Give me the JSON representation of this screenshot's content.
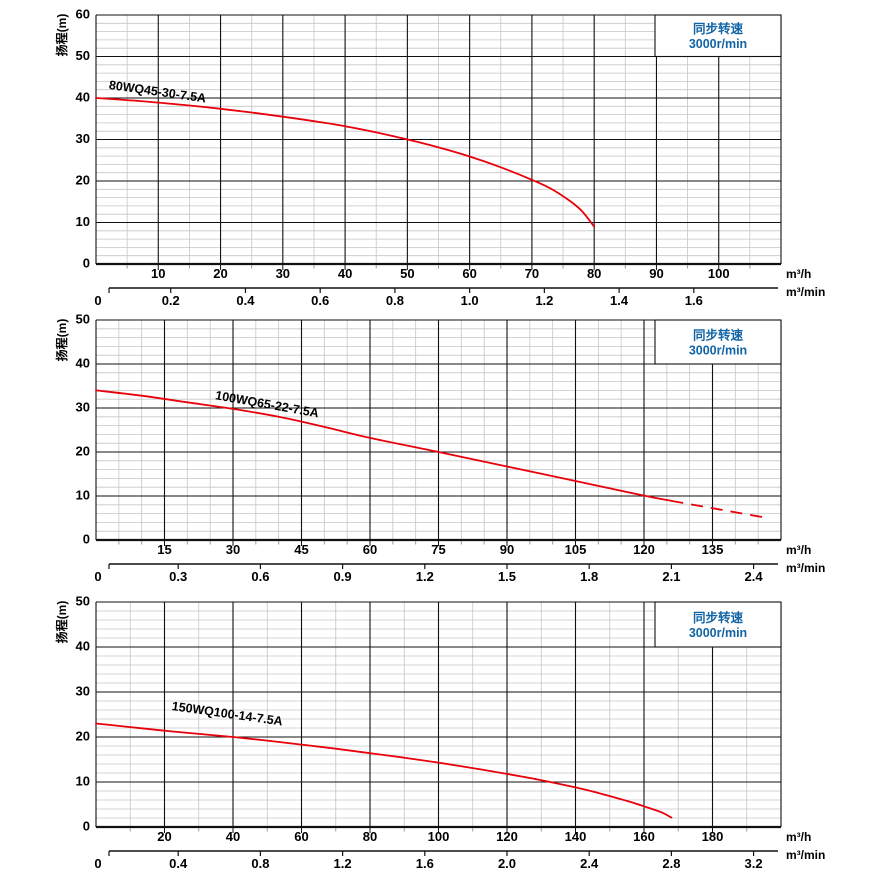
{
  "page": {
    "background": "#ffffff"
  },
  "colors": {
    "curve_red": "#e8000a",
    "accent_blue": "#1264a5",
    "grid_major": "#111111",
    "grid_minor": "#c6c6c6",
    "text_black": "#000000",
    "box_bg": "#ffffff"
  },
  "chart_data": [
    {
      "type": "line",
      "model_label": "80WQ45-30-7.5A",
      "ylabel": "扬程(m)",
      "unit_primary": "m³/h",
      "unit_secondary": "m³/min",
      "annotation": {
        "line1": "同步转速",
        "line2": "3000r/min"
      },
      "ylim": [
        0,
        60
      ],
      "xlim": [
        0,
        110
      ],
      "y_ticks": [
        0,
        10,
        20,
        30,
        40,
        50,
        60
      ],
      "y_minor_step": 2,
      "x_major_step": 10,
      "x_minor_step": 5,
      "x_ticks_m3h": [
        10,
        20,
        30,
        40,
        50,
        60,
        70,
        80,
        90,
        100
      ],
      "x_ticks_m3min": [
        "0",
        "0.2",
        "0.4",
        "0.6",
        "0.8",
        "1.0",
        "1.2",
        "1.4",
        "1.6"
      ],
      "curve": {
        "points_m3h_head_m": [
          [
            0,
            40
          ],
          [
            5,
            39.5
          ],
          [
            10,
            38.9
          ],
          [
            15,
            38.2
          ],
          [
            20,
            37.4
          ],
          [
            25,
            36.5
          ],
          [
            30,
            35.5
          ],
          [
            35,
            34.4
          ],
          [
            40,
            33.2
          ],
          [
            45,
            31.7
          ],
          [
            50,
            30
          ],
          [
            55,
            28.1
          ],
          [
            60,
            25.9
          ],
          [
            65,
            23.3
          ],
          [
            70,
            20.3
          ],
          [
            73,
            18.2
          ],
          [
            76,
            15.3
          ],
          [
            78,
            12.8
          ],
          [
            80,
            9
          ]
        ],
        "dash_from": null
      },
      "label_anchor_data": [
        2,
        42.2
      ],
      "label_angle_deg": 8
    },
    {
      "type": "line",
      "model_label": "100WQ65-22-7.5A",
      "ylabel": "扬程(m)",
      "unit_primary": "m³/h",
      "unit_secondary": "m³/min",
      "annotation": {
        "line1": "同步转速",
        "line2": "3000r/min"
      },
      "ylim": [
        0,
        50
      ],
      "xlim": [
        0,
        150
      ],
      "y_ticks": [
        0,
        10,
        20,
        30,
        40,
        50
      ],
      "y_minor_step": 2,
      "x_major_step": 15,
      "x_minor_step": 5,
      "x_ticks_m3h": [
        15,
        30,
        45,
        60,
        75,
        90,
        105,
        120,
        135
      ],
      "x_ticks_m3min": [
        "0",
        "0.3",
        "0.6",
        "0.9",
        "1.2",
        "1.5",
        "1.8",
        "2.1",
        "2.4"
      ],
      "curve": {
        "points_m3h_head_m": [
          [
            0,
            34
          ],
          [
            10,
            32.8
          ],
          [
            20,
            31.3
          ],
          [
            30,
            29.8
          ],
          [
            40,
            28
          ],
          [
            50,
            25.7
          ],
          [
            60,
            23.2
          ],
          [
            75,
            20
          ],
          [
            90,
            16.7
          ],
          [
            105,
            13.4
          ],
          [
            120,
            10.1
          ],
          [
            126,
            8.9
          ],
          [
            133,
            7.6
          ],
          [
            140,
            6.3
          ],
          [
            147,
            5
          ]
        ],
        "dash_from": 126
      },
      "label_anchor_data": [
        26,
        32
      ],
      "label_angle_deg": 10
    },
    {
      "type": "line",
      "model_label": "150WQ100-14-7.5A",
      "ylabel": "扬程(m)",
      "unit_primary": "m³/h",
      "unit_secondary": "m³/min",
      "annotation": {
        "line1": "同步转速",
        "line2": "3000r/min"
      },
      "ylim": [
        0,
        50
      ],
      "xlim": [
        0,
        200
      ],
      "y_ticks": [
        0,
        10,
        20,
        30,
        40,
        50
      ],
      "y_minor_step": 2,
      "x_major_step": 20,
      "x_minor_step": 10,
      "x_ticks_m3h": [
        20,
        40,
        60,
        80,
        100,
        120,
        140,
        160,
        180
      ],
      "x_ticks_m3min": [
        "0",
        "0.4",
        "0.8",
        "1.2",
        "1.6",
        "2.0",
        "2.4",
        "2.8",
        "3.2"
      ],
      "curve": {
        "points_m3h_head_m": [
          [
            0,
            23
          ],
          [
            10,
            22.2
          ],
          [
            20,
            21.4
          ],
          [
            30,
            20.7
          ],
          [
            40,
            20
          ],
          [
            50,
            19.2
          ],
          [
            60,
            18.3
          ],
          [
            70,
            17.4
          ],
          [
            80,
            16.4
          ],
          [
            90,
            15.4
          ],
          [
            100,
            14.3
          ],
          [
            110,
            13.1
          ],
          [
            120,
            11.8
          ],
          [
            130,
            10.4
          ],
          [
            140,
            8.8
          ],
          [
            148,
            7.3
          ],
          [
            155,
            5.8
          ],
          [
            160,
            4.6
          ],
          [
            165,
            3.3
          ],
          [
            168,
            2.1
          ]
        ],
        "dash_from": null
      },
      "label_anchor_data": [
        22,
        26
      ],
      "label_angle_deg": 8
    }
  ]
}
